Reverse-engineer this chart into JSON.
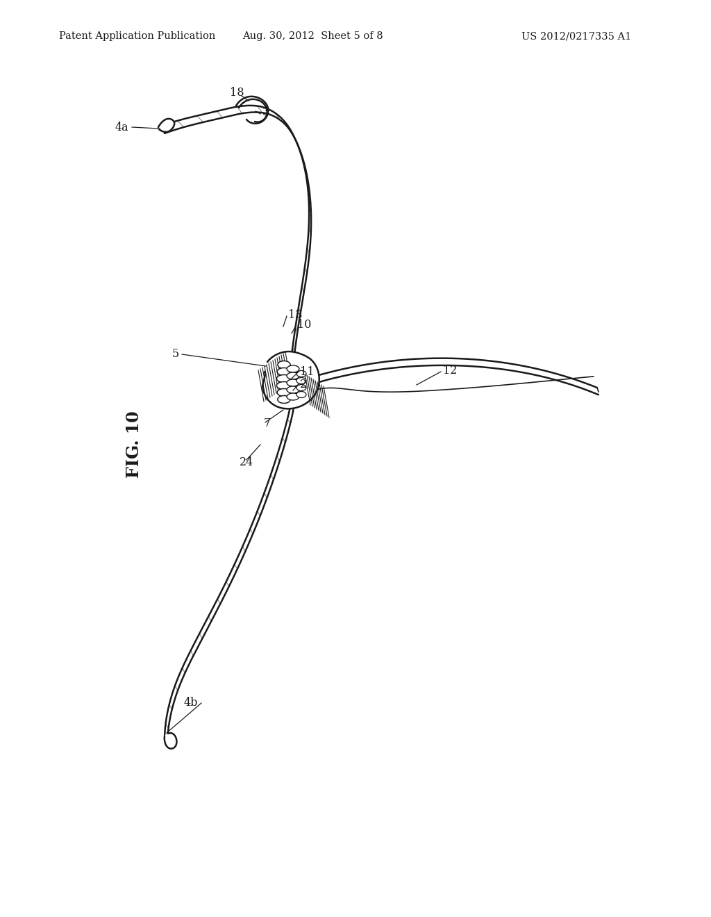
{
  "bg_color": "#ffffff",
  "line_color": "#1a1a1a",
  "header_left": "Patent Application Publication",
  "header_center": "Aug. 30, 2012  Sheet 5 of 8",
  "header_right": "US 2012/0217335 A1",
  "fig_label": "FIG. 10"
}
